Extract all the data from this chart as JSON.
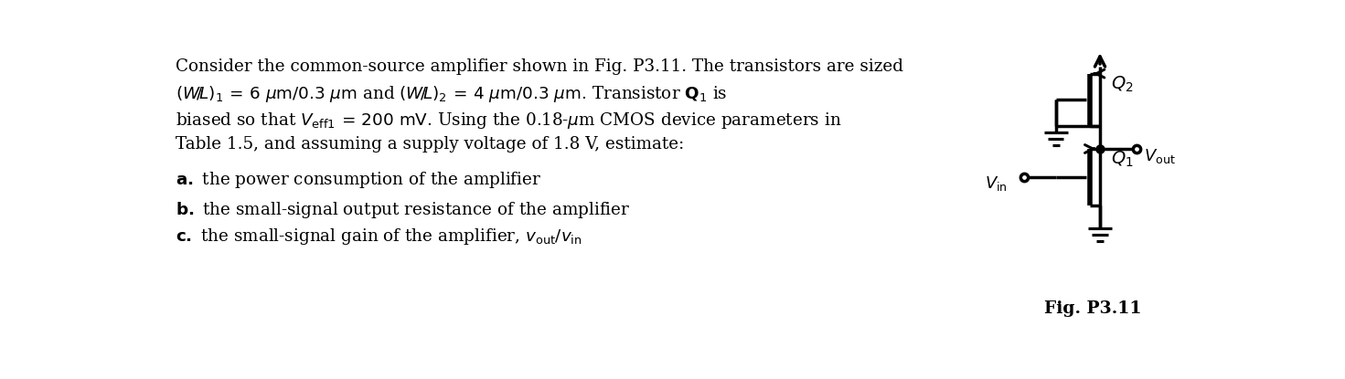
{
  "fig_width": 14.71,
  "fig_height": 4.15,
  "dpi": 100,
  "bg_color": "#ffffff",
  "text_color": "#000000",
  "circuit_color": "#000000",
  "label_color": "#000000",
  "fig_label": "Fig. P3.11"
}
